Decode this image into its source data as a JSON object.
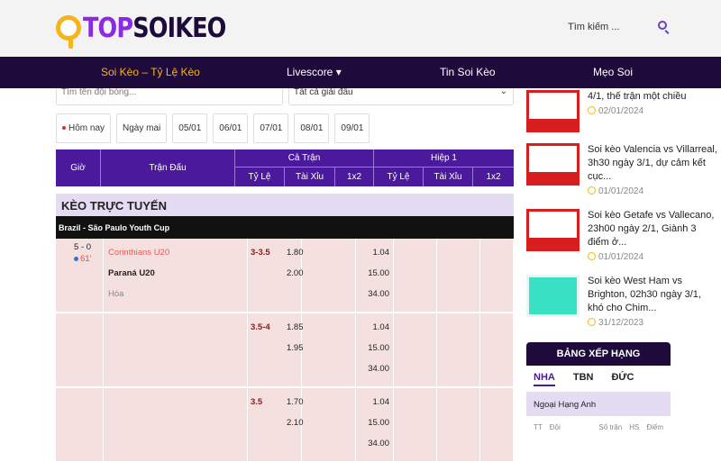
{
  "header": {
    "logo": {
      "part1": "TOP",
      "part2": "SOIKEO"
    },
    "search_placeholder": "Tìm kiếm ...",
    "search_icon": "search-icon"
  },
  "nav": {
    "items": [
      {
        "label": "Soi Kèo – Tỷ Lệ Kèo",
        "active": true
      },
      {
        "label": "Livescore ▾"
      },
      {
        "label": "Tin Soi Kèo"
      },
      {
        "label": "Mẹo Soi"
      }
    ],
    "active_color": "#f4b41a"
  },
  "filters": {
    "team_placeholder": "Tìm tên đội bóng...",
    "league_select": "Tất cả giải đấu"
  },
  "dates": [
    "Hôm nay",
    "Ngày mai",
    "05/01",
    "06/01",
    "07/01",
    "08/01",
    "09/01"
  ],
  "table": {
    "headers": {
      "time": "Giờ",
      "match": "Trận Đấu",
      "full": "Cả Trận",
      "half": "Hiệp 1",
      "handicap": "Tỷ Lệ",
      "overunder": "Tài Xỉu",
      "x12": "1x2"
    },
    "live_title": "KÈO TRỰC TUYẾN",
    "league": "Brazil - São Paulo Youth Cup",
    "match": {
      "score": "5 - 0",
      "minute": "61'",
      "home": "Corinthians U20",
      "away": "Paraná U20",
      "draw": "Hòa"
    },
    "rows": [
      {
        "line": "3-3.5",
        "odds": [
          "1.80",
          "2.00"
        ],
        "x12": [
          "1.04",
          "15.00",
          "34.00"
        ]
      },
      {
        "line": "3.5-4",
        "odds": [
          "1.85",
          "1.95"
        ],
        "x12": [
          "1.04",
          "15.00",
          "34.00"
        ]
      },
      {
        "line": "3.5",
        "odds": [
          "1.70",
          "2.10"
        ],
        "x12": [
          "1.04",
          "15.00",
          "34.00"
        ]
      }
    ]
  },
  "sidebar": {
    "articles": [
      {
        "title": "4/1, thế trận một chiều",
        "date": "02/01/2024"
      },
      {
        "title": "Soi kèo Valencia vs Villarreal, 3h30 ngày 3/1, dự cảm kết cục...",
        "date": "01/01/2024"
      },
      {
        "title": "Soi kèo Getafe vs Vallecano, 23h00 ngày 2/1, Giành 3 điểm ở...",
        "date": "01/01/2024"
      },
      {
        "title": "Soi kèo West Ham vs Brighton, 02h30 ngày 3/1, khó cho Chim...",
        "date": "31/12/2023"
      }
    ],
    "standings": {
      "title": "BẢNG XẾP HẠNG",
      "tabs": [
        "NHA",
        "TBN",
        "ĐỨC"
      ],
      "league": "Ngoại Hạng Anh",
      "columns": [
        "TT",
        "Đội",
        "Số trận",
        "HS",
        "Điểm"
      ]
    }
  }
}
